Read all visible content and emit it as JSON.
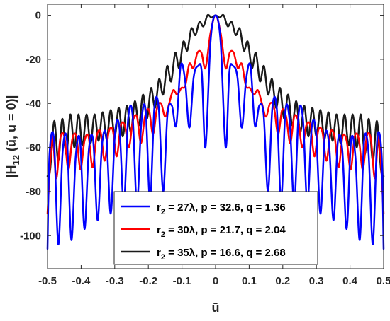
{
  "chart_data": {
    "type": "line",
    "xlabel": "ū",
    "ylabel": "|H12 (ū, u = 0)|",
    "ylabel_parts": {
      "pre": "|H",
      "sub": "12",
      "post": " (ū, u = 0)|"
    },
    "xlim": [
      -0.5,
      0.5
    ],
    "ylim": [
      -115,
      5
    ],
    "x_ticks": [
      -0.5,
      -0.4,
      -0.3,
      -0.2,
      -0.1,
      0,
      0.1,
      0.2,
      0.3,
      0.4,
      0.5
    ],
    "x_tick_labels": [
      "-0.5",
      "-0.4",
      "-0.3",
      "-0.2",
      "-0.1",
      "0",
      "0.1",
      "0.2",
      "0.3",
      "0.4",
      "0.5"
    ],
    "y_ticks": [
      -100,
      -80,
      -60,
      -40,
      -20,
      0
    ],
    "y_tick_labels": [
      "-100",
      "-80",
      "-60",
      "-40",
      "-20",
      "0"
    ],
    "grid": false,
    "legend": {
      "position": "bottom-center"
    },
    "series": [
      {
        "name": "r2 = 27λ, p = 32.6, q = 1.36",
        "legend_parts": {
          "pre": "r",
          "sub": "2",
          "post": " = 27λ, p = 32.6, q = 1.36"
        },
        "color": "#0000ff",
        "x": [
          0,
          0.015,
          0.03,
          0.041,
          0.052,
          0.065,
          0.078,
          0.091,
          0.104,
          0.117,
          0.13,
          0.143,
          0.156,
          0.169,
          0.182,
          0.195,
          0.208,
          0.221,
          0.234,
          0.247,
          0.26,
          0.273,
          0.286,
          0.299,
          0.312,
          0.325,
          0.338,
          0.351,
          0.364,
          0.377,
          0.39,
          0.403,
          0.416,
          0.429,
          0.442,
          0.455,
          0.468,
          0.481,
          0.494,
          0.5
        ],
        "y": [
          0,
          -12,
          -60,
          -26,
          -23,
          -28,
          -51,
          -29,
          -23,
          -50,
          -41,
          -45,
          -80,
          -42,
          -42,
          -84,
          -43,
          -49,
          -86,
          -45,
          -47,
          -86,
          -51,
          -53,
          -90,
          -55,
          -59,
          -93,
          -57,
          -61,
          -97,
          -57,
          -64,
          -102,
          -57,
          -62,
          -104,
          -56,
          -63,
          -106
        ]
      },
      {
        "name": "r2 = 30λ, p = 21.7, q = 2.04",
        "legend_parts": {
          "pre": "r",
          "sub": "2",
          "post": " = 30λ, p = 21.7, q = 2.04"
        },
        "color": "#ff0000",
        "x": [
          0,
          0.015,
          0.03,
          0.042,
          0.054,
          0.066,
          0.078,
          0.09,
          0.102,
          0.114,
          0.126,
          0.138,
          0.15,
          0.162,
          0.174,
          0.186,
          0.198,
          0.21,
          0.222,
          0.234,
          0.246,
          0.258,
          0.27,
          0.282,
          0.294,
          0.306,
          0.318,
          0.33,
          0.342,
          0.354,
          0.366,
          0.378,
          0.39,
          0.402,
          0.414,
          0.426,
          0.438,
          0.45,
          0.462,
          0.474,
          0.486,
          0.5
        ],
        "y": [
          0,
          -8,
          -24,
          -17,
          -17,
          -24,
          -22,
          -32,
          -33,
          -36,
          -34,
          -40,
          -46,
          -40,
          -42,
          -54,
          -43,
          -46,
          -58,
          -46,
          -48,
          -60,
          -50,
          -50,
          -64,
          -52,
          -53,
          -66,
          -53,
          -55,
          -69,
          -55,
          -57,
          -70,
          -55,
          -56,
          -70,
          -55,
          -56,
          -74,
          -55,
          -90
        ]
      },
      {
        "name": "r2 = 35λ, p = 16.6, q = 2.68",
        "legend_parts": {
          "pre": "r",
          "sub": "2",
          "post": " = 35λ, p = 16.6, q = 2.68"
        },
        "color": "#1a1a1a",
        "x": [
          0,
          0.012,
          0.024,
          0.036,
          0.048,
          0.06,
          0.072,
          0.084,
          0.096,
          0.108,
          0.12,
          0.132,
          0.144,
          0.156,
          0.168,
          0.18,
          0.192,
          0.204,
          0.216,
          0.228,
          0.24,
          0.252,
          0.264,
          0.276,
          0.288,
          0.3,
          0.312,
          0.324,
          0.336,
          0.348,
          0.36,
          0.372,
          0.384,
          0.396,
          0.408,
          0.42,
          0.432,
          0.444,
          0.456,
          0.468,
          0.48,
          0.492,
          0.5
        ],
        "y": [
          0,
          -1,
          0,
          -5,
          -3,
          -9,
          -6,
          -16,
          -12,
          -24,
          -17,
          -30,
          -23,
          -36,
          -29,
          -42,
          -33,
          -47,
          -36,
          -50,
          -39,
          -53,
          -41,
          -55,
          -42,
          -55,
          -43,
          -56,
          -44,
          -57,
          -45,
          -58,
          -45,
          -59,
          -45,
          -60,
          -45,
          -63,
          -47,
          -66,
          -48,
          -70,
          -73
        ]
      }
    ]
  }
}
